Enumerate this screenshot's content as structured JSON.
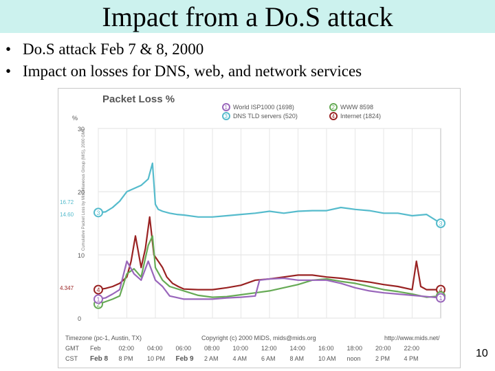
{
  "slide": {
    "title": "Impact from a Do.S attack",
    "bullets": [
      "Do.S attack Feb 7 & 8, 2000",
      "Impact on losses for DNS, web, and network services"
    ],
    "page_number": "10"
  },
  "chart_data": {
    "type": "line",
    "title": "Packet Loss %",
    "ylabel": "%",
    "side_label": "Cumulative Packet Loss by Miscellaneous Group (MIS), 2000 GMT",
    "ylim": [
      0,
      30
    ],
    "yticks": [
      0,
      10,
      20,
      30
    ],
    "x_range": [
      0,
      24
    ],
    "x_tick_hours": [
      0,
      2,
      4,
      6,
      8,
      10,
      12,
      14,
      16,
      18,
      20,
      22
    ],
    "timezone_label": "Timezone (pc-1, Austin, TX)",
    "copyright": "Copyright (c) 2000 MIDS, mids@mids.org",
    "url": "http://www.mids.net/",
    "gmt_label": "GMT",
    "cst_label": "CST",
    "gmt_ticks": [
      "Feb",
      "02:00",
      "04:00",
      "06:00",
      "08:00",
      "10:00",
      "12:00",
      "14:00",
      "16:00",
      "18:00",
      "20:00",
      "22:00"
    ],
    "cst_ticks": [
      "Feb 8",
      "8 PM",
      "10 PM",
      "Feb 9",
      "2 AM",
      "4 AM",
      "6 AM",
      "8 AM",
      "10 AM",
      "noon",
      "2 PM",
      "4 PM"
    ],
    "left_value_labels": [
      "16.72",
      "14.60",
      "4.347"
    ],
    "legend": [
      {
        "marker": "1",
        "name": "World ISP1000 (1698)",
        "color": "#9966bb"
      },
      {
        "marker": "2",
        "name": "WWW 8598",
        "color": "#66aa55"
      },
      {
        "marker": "3",
        "name": "DNS TLD servers (520)",
        "color": "#55bbcc"
      },
      {
        "marker": "4",
        "name": "Internet (1824)",
        "color": "#992222"
      }
    ],
    "series": [
      {
        "name": "DNS TLD servers",
        "color": "#55bbcc",
        "marker": "3",
        "x": [
          0,
          0.5,
          1,
          1.5,
          2,
          2.5,
          3,
          3.5,
          3.8,
          4,
          4.2,
          4.5,
          5,
          5.5,
          6,
          7,
          8,
          9,
          10,
          11,
          12,
          13,
          14,
          15,
          16,
          17,
          18,
          19,
          20,
          21,
          22,
          23,
          24
        ],
        "y": [
          16.7,
          16.8,
          17.5,
          18.5,
          20,
          20.5,
          21,
          22,
          24.5,
          18,
          17.2,
          16.9,
          16.6,
          16.4,
          16.3,
          16,
          16,
          16.2,
          16.4,
          16.6,
          16.9,
          16.6,
          16.9,
          17,
          17,
          17.5,
          17.2,
          17,
          16.6,
          16.6,
          16.2,
          16.4,
          15
        ]
      },
      {
        "name": "Internet",
        "color": "#992222",
        "marker": "4",
        "x": [
          0,
          0.5,
          1,
          1.5,
          2,
          2.3,
          2.6,
          3,
          3.3,
          3.6,
          3.9,
          4.2,
          4.5,
          4.8,
          5.2,
          5.6,
          6,
          7,
          8,
          9,
          10,
          11,
          12,
          13,
          14,
          15,
          16,
          17,
          18,
          19,
          20,
          21,
          22,
          22.3,
          22.6,
          23,
          24
        ],
        "y": [
          4.5,
          4.7,
          5,
          5.5,
          6.5,
          9,
          13,
          8,
          11,
          16,
          10,
          9,
          8,
          6.5,
          5.5,
          5,
          4.6,
          4.5,
          4.5,
          4.8,
          5.2,
          6,
          6.2,
          6.5,
          6.8,
          6.8,
          6.5,
          6.3,
          6,
          5.7,
          5.3,
          5,
          4.5,
          9,
          5,
          4.5,
          4.5
        ]
      },
      {
        "name": "WWW",
        "color": "#66aa55",
        "marker": "2",
        "x": [
          0,
          0.5,
          1,
          1.5,
          2,
          2.5,
          3,
          3.5,
          3.8,
          4,
          4.5,
          5,
          6,
          7,
          8,
          9,
          10,
          11,
          12,
          13,
          14,
          15,
          16,
          17,
          18,
          19,
          20,
          21,
          22,
          23,
          24
        ],
        "y": [
          2.2,
          2.6,
          3,
          3.5,
          7,
          7.8,
          6.5,
          11.5,
          13,
          8,
          6,
          5,
          4.3,
          3.6,
          3.3,
          3.4,
          3.7,
          4,
          4.3,
          4.8,
          5.3,
          6,
          6.2,
          5.8,
          5.5,
          5,
          4.5,
          4.2,
          3.8,
          3.3,
          3.5
        ]
      },
      {
        "name": "World ISP1000",
        "color": "#9966bb",
        "marker": "1",
        "x": [
          0,
          0.5,
          1,
          1.5,
          2,
          2.5,
          3,
          3.5,
          4,
          4.5,
          5,
          6,
          7,
          8,
          9,
          10,
          11,
          11.3,
          12,
          13,
          14,
          15,
          16,
          17,
          18,
          19,
          20,
          21,
          22,
          23,
          24
        ],
        "y": [
          3,
          3.2,
          3.8,
          4.5,
          9,
          7,
          6,
          9,
          6,
          5,
          3.5,
          3,
          3,
          3,
          3.2,
          3.3,
          3.5,
          6,
          6.2,
          6.3,
          6,
          6,
          6,
          5.5,
          4.8,
          4.3,
          4,
          3.8,
          3.6,
          3.4,
          3.2
        ]
      }
    ]
  }
}
